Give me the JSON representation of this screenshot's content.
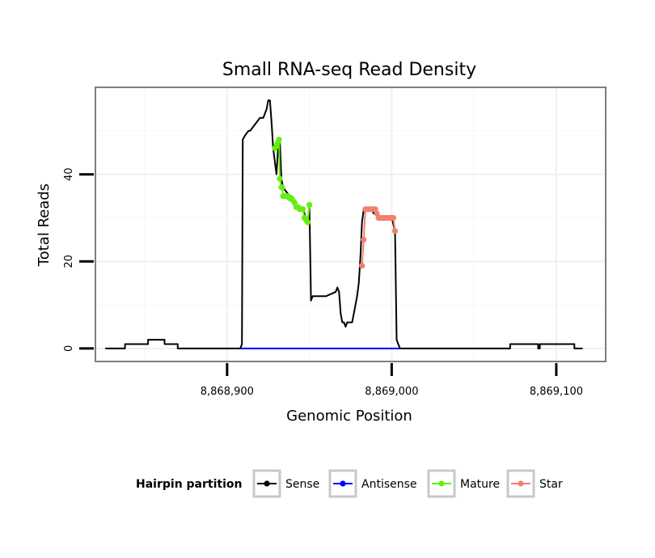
{
  "chart_data": {
    "type": "line",
    "title": "Small RNA-seq Read Density",
    "xlabel": "Genomic Position",
    "ylabel": "Total Reads",
    "xlim": [
      8868820,
      8869130
    ],
    "ylim": [
      -3,
      60
    ],
    "xticks": [
      {
        "value": 8868900,
        "label": "8,868,900"
      },
      {
        "value": 8869000,
        "label": "8,869,000"
      },
      {
        "value": 8869100,
        "label": "8,869,100"
      }
    ],
    "yticks": [
      {
        "value": 0,
        "label": "0"
      },
      {
        "value": 20,
        "label": "20"
      },
      {
        "value": 40,
        "label": "40"
      }
    ],
    "grid": true,
    "legend": {
      "title": "Hairpin partition",
      "position": "bottom",
      "entries": [
        {
          "label": "Sense",
          "color": "#000000"
        },
        {
          "label": "Antisense",
          "color": "#0000ff"
        },
        {
          "label": "Mature",
          "color": "#66ee11"
        },
        {
          "label": "Star",
          "color": "#f08070"
        }
      ]
    },
    "series": [
      {
        "name": "Sense",
        "style": "line",
        "color": "#000000",
        "x": [
          8868826,
          8868838,
          8868838,
          8868852,
          8868852,
          8868862,
          8868862,
          8868870,
          8868870,
          8868908,
          8868909,
          8868909.5,
          8868911,
          8868913,
          8868914,
          8868916,
          8868918,
          8868920,
          8868922,
          8868924,
          8868925,
          8868926,
          8868927,
          8868928,
          8868930,
          8868931,
          8868932,
          8868933,
          8868934,
          8868936,
          8868938,
          8868939,
          8868940,
          8868941,
          8868942,
          8868943,
          8868944,
          8868945,
          8868946,
          8868947,
          8868948,
          8868949,
          8868950,
          8868951,
          8868952,
          8868960,
          8868966,
          8868967,
          8868968,
          8868969,
          8868970,
          8868971,
          8868972,
          8868973,
          8868974,
          8868976,
          8868978,
          8868979,
          8868980,
          8868981,
          8868982,
          8868983,
          8868984,
          8868985,
          8868986,
          8868987,
          8868988,
          8868989,
          8868990,
          8868992,
          8868994,
          8868996,
          8868998,
          8869000,
          8869002,
          8869003,
          8869004,
          8869005,
          8869072,
          8869072,
          8869089,
          8869089,
          8869090,
          8869090,
          8869111,
          8869111,
          8869116
        ],
        "y": [
          0,
          0,
          1,
          1,
          2,
          2,
          1,
          1,
          0,
          0,
          1,
          48,
          49,
          50,
          50,
          51,
          52,
          53,
          53,
          55,
          57,
          57,
          52,
          46,
          40,
          46,
          48,
          39,
          37,
          36,
          35,
          35,
          34,
          34,
          33,
          32,
          32,
          32,
          32,
          31,
          30,
          29,
          33,
          11,
          12,
          12,
          13,
          14,
          13,
          8,
          6,
          6,
          5,
          6,
          6,
          6,
          10,
          12,
          15,
          21,
          29,
          32,
          32,
          32,
          32,
          32,
          32,
          31,
          31,
          30,
          30,
          30,
          30,
          30,
          27,
          2,
          1,
          0,
          0,
          1,
          1,
          0,
          0,
          1,
          1,
          0,
          0
        ]
      },
      {
        "name": "Antisense",
        "style": "line",
        "color": "#0000ff",
        "x": [
          8868908,
          8869005
        ],
        "y": [
          0,
          0
        ]
      },
      {
        "name": "Mature",
        "style": "line+points",
        "color": "#66ee11",
        "x": [
          8868929,
          8868930,
          8868930.5,
          8868931,
          8868931.5,
          8868932,
          8868933,
          8868933.5,
          8868934,
          8868935,
          8868936,
          8868937,
          8868938,
          8868939,
          8868940,
          8868941,
          8868942,
          8868943,
          8868944,
          8868945,
          8868946,
          8868947,
          8868948,
          8868949,
          8868950
        ],
        "y": [
          46,
          46.5,
          47,
          47.5,
          48,
          39,
          37,
          37,
          35,
          35,
          35,
          35,
          34.5,
          34.5,
          34,
          33.5,
          32.5,
          32.5,
          32,
          32,
          32,
          30,
          29.5,
          29,
          33
        ]
      },
      {
        "name": "Star",
        "style": "line+points",
        "color": "#f08070",
        "x": [
          8868982,
          8868983,
          8868984,
          8868985,
          8868986,
          8868987,
          8868988,
          8868989,
          8868990,
          8868991,
          8868992,
          8868993,
          8868994,
          8868995,
          8868996,
          8868997,
          8868998,
          8868999,
          8869000,
          8869001,
          8869002
        ],
        "y": [
          19,
          25,
          32,
          32,
          32,
          32,
          32,
          32,
          32,
          31,
          30,
          30,
          30,
          30,
          30,
          30,
          30,
          30,
          30,
          30,
          27
        ]
      }
    ]
  }
}
